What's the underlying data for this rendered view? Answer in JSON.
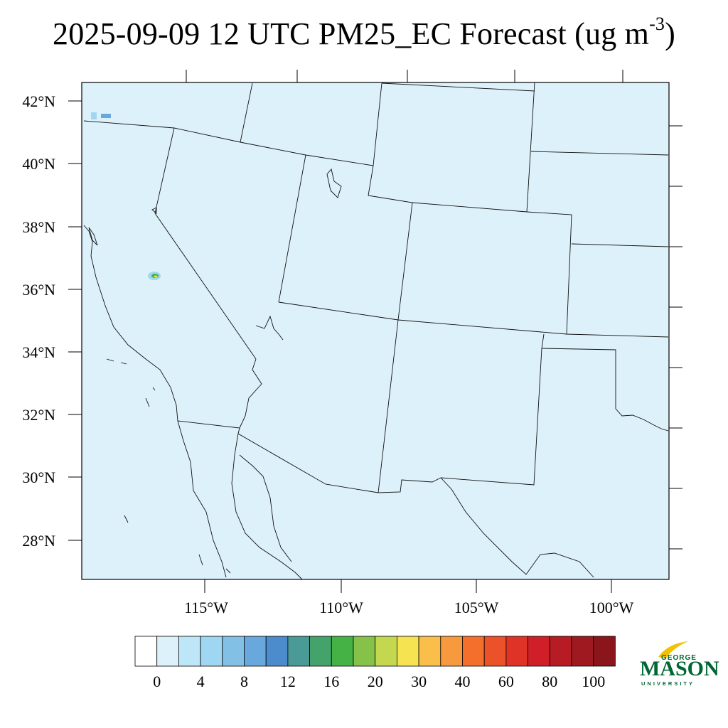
{
  "title": {
    "main": "2025-09-09 12 UTC PM25_EC Forecast (ug m",
    "sup": "-3",
    "end": ")"
  },
  "map": {
    "background": "#ddf1fb",
    "lat_labels": [
      "42°N",
      "40°N",
      "38°N",
      "36°N",
      "34°N",
      "32°N",
      "30°N",
      "28°N"
    ],
    "lon_labels": [
      "115°W",
      "110°W",
      "105°W",
      "100°W"
    ]
  },
  "colorbar": {
    "colors": [
      "#ffffff",
      "#ddf1fb",
      "#bde6f8",
      "#9fd7f2",
      "#82c0e6",
      "#68a8dc",
      "#4c8ccc",
      "#4a9a98",
      "#43a36b",
      "#45b245",
      "#86c24a",
      "#c3d84e",
      "#f5e351",
      "#f9bf4a",
      "#f7993d",
      "#f46e2c",
      "#eb5229",
      "#e03327",
      "#d01f26",
      "#b71c24",
      "#9f1a20",
      "#8a151a"
    ],
    "labels": [
      "0",
      "4",
      "8",
      "12",
      "16",
      "20",
      "30",
      "40",
      "60",
      "80",
      "100"
    ]
  },
  "logo": {
    "top": "GEORGE",
    "name": "MASON",
    "bottom": "UNIVERSITY",
    "color": "#006633",
    "accent": "#f2c100"
  }
}
